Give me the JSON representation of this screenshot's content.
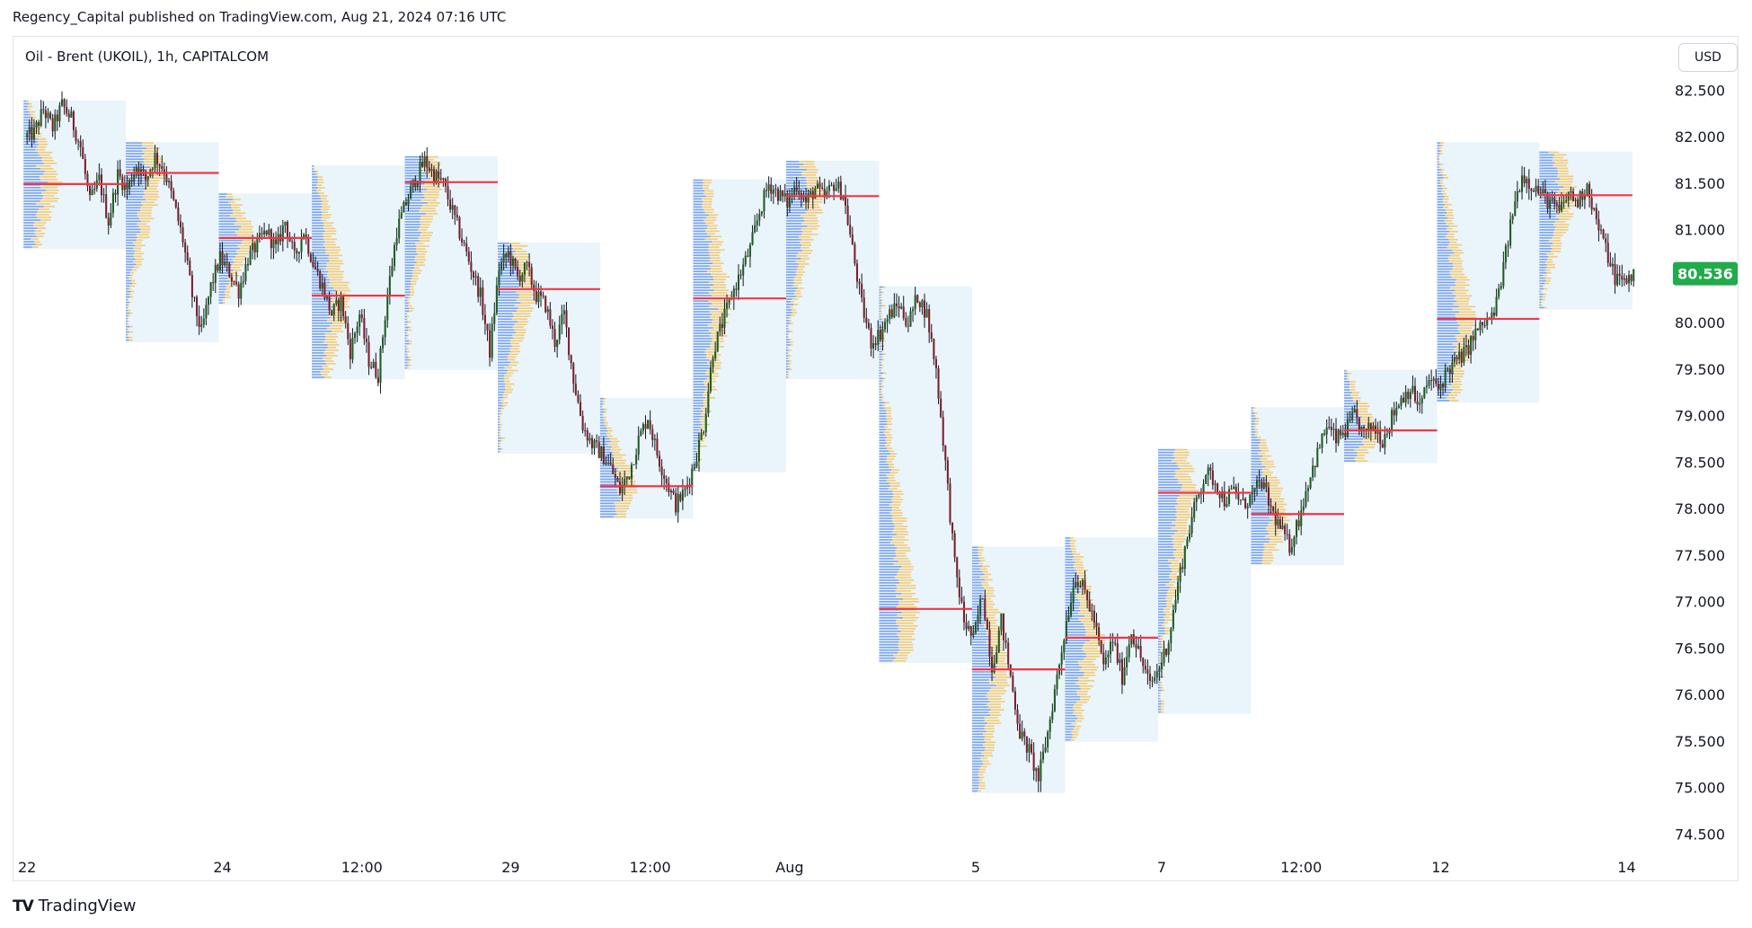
{
  "header": {
    "published_line": "Regency_Capital published on TradingView.com, Aug 21, 2024 07:16 UTC"
  },
  "chart_header": {
    "symbol_line": "Oil - Brent (UKOIL), 1h, CAPITALCOM",
    "currency_button": "USD"
  },
  "footer": {
    "brand": "TradingView",
    "logo_mark": "TV"
  },
  "colors": {
    "up": "#26a69a",
    "up_body": "#1b5e20",
    "down": "#7b1f2a",
    "candle_wick": "#131722",
    "poc_line": "#f23645",
    "profile_box": "#eaf4fb",
    "profile_blue": "#5b8def",
    "profile_orange": "#f7c55f",
    "last_price_bg": "#22ab4b"
  },
  "chart_data": {
    "type": "candlestick",
    "title": "Oil - Brent (UKOIL), 1h, CAPITALCOM",
    "currency": "USD",
    "last_price": "80.536",
    "y_ticks": [
      "82.500",
      "82.000",
      "81.500",
      "81.000",
      "80.500",
      "80.000",
      "79.500",
      "79.000",
      "78.500",
      "78.000",
      "77.500",
      "77.000",
      "76.500",
      "76.000",
      "75.500",
      "75.000",
      "74.500"
    ],
    "y_range": [
      74.3,
      82.9
    ],
    "x_labels": [
      {
        "label": "22",
        "idx": 0
      },
      {
        "label": "24",
        "idx": 21
      },
      {
        "label": "12:00",
        "idx": 36
      },
      {
        "label": "29",
        "idx": 52
      },
      {
        "label": "12:00",
        "idx": 67
      },
      {
        "label": "Aug",
        "idx": 82
      },
      {
        "label": "5",
        "idx": 102
      },
      {
        "label": "7",
        "idx": 122
      },
      {
        "label": "12:00",
        "idx": 137
      },
      {
        "label": "12",
        "idx": 152
      },
      {
        "label": "14",
        "idx": 172
      }
    ],
    "session_profiles": [
      {
        "start": 0,
        "end": 11,
        "high": 82.4,
        "low": 80.8,
        "poc": 81.5
      },
      {
        "start": 11,
        "end": 21,
        "high": 81.95,
        "low": 79.8,
        "poc": 81.62
      },
      {
        "start": 21,
        "end": 31,
        "high": 81.4,
        "low": 80.2,
        "poc": 80.92
      },
      {
        "start": 31,
        "end": 41,
        "high": 81.7,
        "low": 79.4,
        "poc": 80.3
      },
      {
        "start": 41,
        "end": 51,
        "high": 81.8,
        "low": 79.5,
        "poc": 81.52
      },
      {
        "start": 51,
        "end": 62,
        "high": 80.87,
        "low": 78.6,
        "poc": 80.37
      },
      {
        "start": 62,
        "end": 72,
        "high": 79.2,
        "low": 77.9,
        "poc": 78.25
      },
      {
        "start": 72,
        "end": 82,
        "high": 81.55,
        "low": 78.4,
        "poc": 80.27
      },
      {
        "start": 82,
        "end": 92,
        "high": 81.75,
        "low": 79.4,
        "poc": 81.37
      },
      {
        "start": 92,
        "end": 102,
        "high": 80.4,
        "low": 76.35,
        "poc": 76.93
      },
      {
        "start": 102,
        "end": 112,
        "high": 77.6,
        "low": 74.95,
        "poc": 76.28
      },
      {
        "start": 112,
        "end": 122,
        "high": 77.7,
        "low": 75.5,
        "poc": 76.62
      },
      {
        "start": 122,
        "end": 132,
        "high": 78.65,
        "low": 75.8,
        "poc": 78.18
      },
      {
        "start": 132,
        "end": 142,
        "high": 79.1,
        "low": 77.4,
        "poc": 77.95
      },
      {
        "start": 142,
        "end": 152,
        "high": 79.5,
        "low": 78.5,
        "poc": 78.85
      },
      {
        "start": 152,
        "end": 163,
        "high": 81.95,
        "low": 79.15,
        "poc": 80.05
      },
      {
        "start": 163,
        "end": 173,
        "high": 81.85,
        "low": 80.15,
        "poc": 81.38
      }
    ],
    "close_path": [
      [
        0,
        82.0
      ],
      [
        1,
        82.05
      ],
      [
        2,
        82.3
      ],
      [
        3,
        82.1
      ],
      [
        4,
        82.35
      ],
      [
        5,
        82.2
      ],
      [
        6,
        81.9
      ],
      [
        7,
        81.3
      ],
      [
        8,
        81.55
      ],
      [
        9,
        81.1
      ],
      [
        10,
        81.6
      ],
      [
        11,
        81.45
      ],
      [
        12,
        81.7
      ],
      [
        13,
        81.55
      ],
      [
        14,
        81.8
      ],
      [
        15,
        81.65
      ],
      [
        16,
        81.3
      ],
      [
        17,
        80.9
      ],
      [
        18,
        80.3
      ],
      [
        19,
        79.9
      ],
      [
        20,
        80.4
      ],
      [
        21,
        80.7
      ],
      [
        22,
        80.55
      ],
      [
        23,
        80.35
      ],
      [
        24,
        80.7
      ],
      [
        25,
        80.85
      ],
      [
        26,
        81.0
      ],
      [
        27,
        80.8
      ],
      [
        28,
        81.1
      ],
      [
        29,
        80.7
      ],
      [
        30,
        81.0
      ],
      [
        31,
        80.65
      ],
      [
        32,
        80.4
      ],
      [
        33,
        80.1
      ],
      [
        34,
        80.25
      ],
      [
        35,
        79.7
      ],
      [
        36,
        80.1
      ],
      [
        37,
        79.6
      ],
      [
        38,
        79.45
      ],
      [
        39,
        80.3
      ],
      [
        40,
        81.0
      ],
      [
        41,
        81.3
      ],
      [
        42,
        81.55
      ],
      [
        43,
        81.75
      ],
      [
        44,
        81.6
      ],
      [
        45,
        81.5
      ],
      [
        46,
        81.2
      ],
      [
        47,
        80.9
      ],
      [
        48,
        80.6
      ],
      [
        49,
        80.3
      ],
      [
        50,
        79.7
      ],
      [
        51,
        80.6
      ],
      [
        52,
        80.75
      ],
      [
        53,
        80.5
      ],
      [
        54,
        80.6
      ],
      [
        55,
        80.3
      ],
      [
        56,
        80.2
      ],
      [
        57,
        79.8
      ],
      [
        58,
        80.1
      ],
      [
        59,
        79.4
      ],
      [
        60,
        78.9
      ],
      [
        61,
        78.7
      ],
      [
        62,
        78.6
      ],
      [
        63,
        78.45
      ],
      [
        64,
        78.2
      ],
      [
        65,
        78.4
      ],
      [
        66,
        78.75
      ],
      [
        67,
        79.0
      ],
      [
        68,
        78.6
      ],
      [
        69,
        78.3
      ],
      [
        70,
        78.05
      ],
      [
        71,
        78.2
      ],
      [
        72,
        78.5
      ],
      [
        73,
        78.9
      ],
      [
        74,
        79.7
      ],
      [
        75,
        80.0
      ],
      [
        76,
        80.3
      ],
      [
        77,
        80.55
      ],
      [
        78,
        80.8
      ],
      [
        79,
        81.2
      ],
      [
        80,
        81.5
      ],
      [
        81,
        81.4
      ],
      [
        82,
        81.3
      ],
      [
        83,
        81.5
      ],
      [
        84,
        81.3
      ],
      [
        85,
        81.45
      ],
      [
        86,
        81.35
      ],
      [
        87,
        81.5
      ],
      [
        88,
        81.4
      ],
      [
        89,
        80.8
      ],
      [
        90,
        80.2
      ],
      [
        91,
        79.8
      ],
      [
        92,
        79.9
      ],
      [
        93,
        80.1
      ],
      [
        94,
        80.2
      ],
      [
        95,
        80.0
      ],
      [
        96,
        80.3
      ],
      [
        97,
        80.1
      ],
      [
        98,
        79.5
      ],
      [
        99,
        78.5
      ],
      [
        100,
        77.4
      ],
      [
        101,
        76.8
      ],
      [
        102,
        76.6
      ],
      [
        103,
        77.1
      ],
      [
        104,
        76.3
      ],
      [
        105,
        76.8
      ],
      [
        106,
        76.2
      ],
      [
        107,
        75.6
      ],
      [
        108,
        75.4
      ],
      [
        109,
        75.1
      ],
      [
        110,
        75.6
      ],
      [
        111,
        76.2
      ],
      [
        112,
        76.8
      ],
      [
        113,
        77.3
      ],
      [
        114,
        77.1
      ],
      [
        115,
        76.8
      ],
      [
        116,
        76.3
      ],
      [
        117,
        76.6
      ],
      [
        118,
        76.2
      ],
      [
        119,
        76.7
      ],
      [
        120,
        76.4
      ],
      [
        121,
        76.1
      ],
      [
        122,
        76.3
      ],
      [
        123,
        76.6
      ],
      [
        124,
        77.2
      ],
      [
        125,
        77.7
      ],
      [
        126,
        78.1
      ],
      [
        127,
        78.4
      ],
      [
        128,
        78.3
      ],
      [
        129,
        78.1
      ],
      [
        130,
        78.2
      ],
      [
        131,
        78.05
      ],
      [
        132,
        78.15
      ],
      [
        133,
        78.3
      ],
      [
        134,
        78.0
      ],
      [
        135,
        77.8
      ],
      [
        136,
        77.6
      ],
      [
        137,
        77.9
      ],
      [
        138,
        78.3
      ],
      [
        139,
        78.6
      ],
      [
        140,
        78.9
      ],
      [
        141,
        78.75
      ],
      [
        142,
        78.85
      ],
      [
        143,
        79.0
      ],
      [
        144,
        78.8
      ],
      [
        145,
        78.9
      ],
      [
        146,
        78.75
      ],
      [
        147,
        79.0
      ],
      [
        148,
        79.2
      ],
      [
        149,
        79.3
      ],
      [
        150,
        79.1
      ],
      [
        151,
        79.4
      ],
      [
        152,
        79.3
      ],
      [
        153,
        79.5
      ],
      [
        154,
        79.6
      ],
      [
        155,
        79.7
      ],
      [
        156,
        79.9
      ],
      [
        157,
        80.0
      ],
      [
        158,
        80.1
      ],
      [
        159,
        80.6
      ],
      [
        160,
        81.2
      ],
      [
        161,
        81.6
      ],
      [
        162,
        81.5
      ],
      [
        163,
        81.4
      ],
      [
        164,
        81.3
      ],
      [
        165,
        81.2
      ],
      [
        166,
        81.4
      ],
      [
        167,
        81.3
      ],
      [
        168,
        81.5
      ],
      [
        169,
        81.1
      ],
      [
        170,
        80.8
      ],
      [
        171,
        80.5
      ],
      [
        172,
        80.45
      ],
      [
        173,
        80.536
      ]
    ]
  }
}
